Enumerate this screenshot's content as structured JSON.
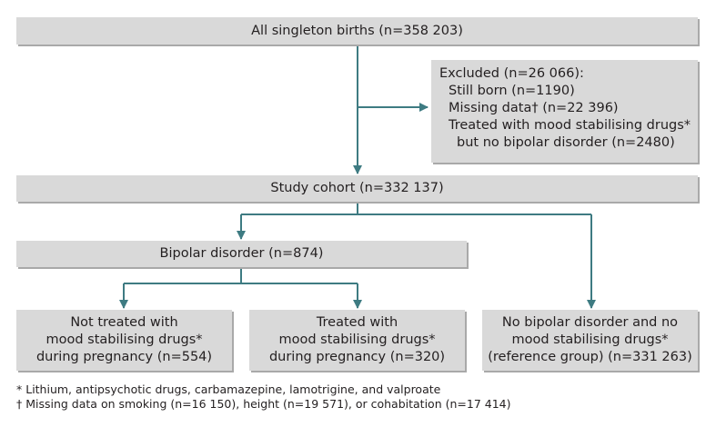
{
  "flowchart": {
    "all_births": "All singleton births (n=358 203)",
    "excluded": {
      "title": "Excluded (n=26 066):",
      "still_born": "Still born (n=1190)",
      "missing": "Missing data† (n=22 396)",
      "treated_line1": "Treated with mood stabilising drugs*",
      "treated_line2": "but no bipolar disorder (n=2480)"
    },
    "study_cohort": "Study cohort (n=332 137)",
    "bipolar": "Bipolar disorder (n=874)",
    "not_treated": {
      "line1": "Not treated with",
      "line2": "mood stabilising drugs*",
      "line3": "during pregnancy (n=554)"
    },
    "treated": {
      "line1": "Treated with",
      "line2": "mood stabilising drugs*",
      "line3": "during pregnancy (n=320)"
    },
    "reference": {
      "line1": "No bipolar disorder and no",
      "line2": "mood stabilising drugs*",
      "line3": "(reference group) (n=331 263)"
    }
  },
  "footnotes": {
    "drugs": "* Lithium, antipsychotic drugs, carbamazepine, lamotrigine, and valproate",
    "missing": "† Missing data on smoking (n=16 150), height (n=19 571), or cohabitation (n=17 414)"
  },
  "colors": {
    "box_fill": "#d9d9d9",
    "box_shadow": "#a9a9a9",
    "connector": "#3e7b82"
  }
}
